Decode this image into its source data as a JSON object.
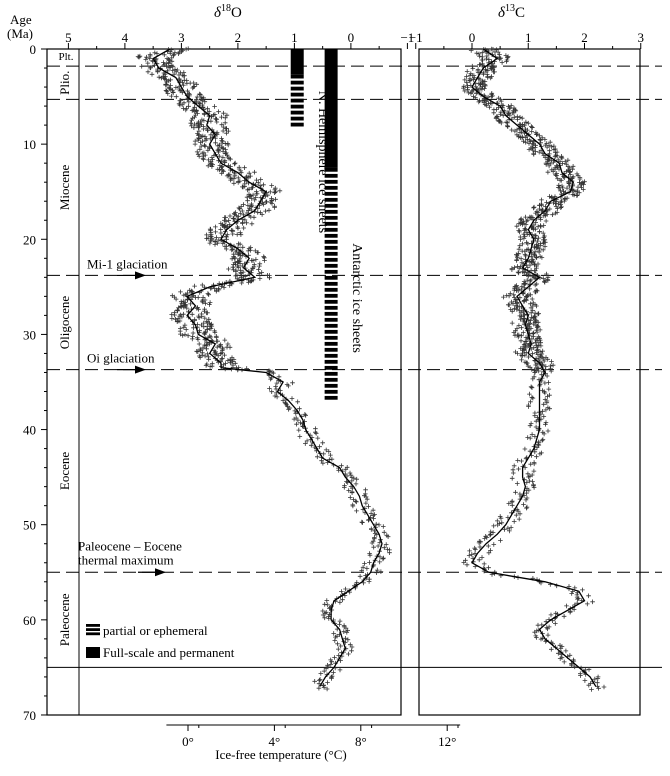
{
  "chart_data": {
    "type": "scatter",
    "y_axis": {
      "label_line1": "Age",
      "label_line2": "(Ma)",
      "ticks": [
        0,
        10,
        20,
        30,
        40,
        50,
        60,
        70
      ],
      "range": [
        0,
        70
      ]
    },
    "o18_axis": {
      "title_delta": "δ",
      "title_sup": "18",
      "title_elem": "O",
      "ticks": [
        5,
        4,
        3,
        2,
        1,
        0,
        -1
      ],
      "tick_labels": [
        "5",
        "4",
        "3",
        "2",
        "1",
        "0",
        "−1"
      ],
      "range": [
        5,
        -1
      ]
    },
    "c13_axis": {
      "title_delta": "δ",
      "title_sup": "13",
      "title_elem": "C",
      "ticks": [
        -1,
        0,
        1,
        2,
        3
      ],
      "tick_labels": [
        "−1",
        "0",
        "1",
        "2",
        "3"
      ],
      "range": [
        -1,
        3
      ]
    },
    "temp_axis": {
      "label": "Ice-free temperature (°C)",
      "ticks": [
        0,
        4,
        8,
        12
      ],
      "tick_labels": [
        "0°",
        "4°",
        "8°",
        "12°"
      ]
    },
    "epochs": [
      {
        "name": "Plt.",
        "start": 0,
        "end": 1.8
      },
      {
        "name": "Plio.",
        "start": 1.8,
        "end": 5.3
      },
      {
        "name": "Miocene",
        "start": 5.3,
        "end": 23.8
      },
      {
        "name": "Oligocene",
        "start": 23.8,
        "end": 33.7
      },
      {
        "name": "Eocene",
        "start": 33.7,
        "end": 55
      },
      {
        "name": "Paleocene",
        "start": 55,
        "end": 65
      }
    ],
    "event_lines": [
      1.8,
      5.3,
      23.8,
      33.7,
      55
    ],
    "boundary_solid": 65,
    "events": [
      {
        "label": "Mi-1 glaciation",
        "age": 23.8
      },
      {
        "label": "Oi glaciation",
        "age": 33.7
      },
      {
        "label_line1": "Paleocene – Eocene",
        "label_line2": "thermal maximum",
        "age": 55
      }
    ],
    "ice_sheets": [
      {
        "label": "N. Hemisphere ice sheets",
        "x_o18": 0.95,
        "partial": [
          2.7,
          8
        ],
        "full": [
          0,
          2.7
        ]
      },
      {
        "label": "Antarctic ice sheets",
        "x_o18": 0.35,
        "partial": [
          12.5,
          37
        ],
        "full": [
          0,
          12.5
        ]
      }
    ],
    "legend": {
      "partial": "partial or ephemeral",
      "full": "Full-scale and permanent"
    },
    "series": [
      {
        "variable": "d18O",
        "curve": [
          [
            0,
            3.2
          ],
          [
            1,
            3.5
          ],
          [
            2,
            3.4
          ],
          [
            3,
            3.1
          ],
          [
            4,
            3.0
          ],
          [
            5,
            2.9
          ],
          [
            6,
            2.7
          ],
          [
            7,
            2.5
          ],
          [
            8,
            2.55
          ],
          [
            9,
            2.4
          ],
          [
            10,
            2.5
          ],
          [
            11,
            2.4
          ],
          [
            12,
            2.3
          ],
          [
            13,
            2.0
          ],
          [
            14,
            1.8
          ],
          [
            15,
            1.5
          ],
          [
            16,
            1.6
          ],
          [
            17,
            1.7
          ],
          [
            18,
            2.0
          ],
          [
            19,
            2.2
          ],
          [
            20,
            2.3
          ],
          [
            21,
            2.0
          ],
          [
            22,
            1.8
          ],
          [
            23,
            1.9
          ],
          [
            24,
            1.7
          ],
          [
            25,
            2.5
          ],
          [
            26,
            2.9
          ],
          [
            27,
            2.75
          ],
          [
            28,
            2.9
          ],
          [
            29,
            2.75
          ],
          [
            30,
            2.7
          ],
          [
            31,
            2.4
          ],
          [
            32,
            2.5
          ],
          [
            33,
            2.3
          ],
          [
            33.5,
            2.3
          ],
          [
            34,
            1.5
          ],
          [
            35,
            1.2
          ],
          [
            36,
            1.3
          ],
          [
            37,
            1.1
          ],
          [
            38,
            0.95
          ],
          [
            39,
            0.85
          ],
          [
            40,
            0.8
          ],
          [
            41,
            0.7
          ],
          [
            42,
            0.6
          ],
          [
            43,
            0.5
          ],
          [
            44,
            0.2
          ],
          [
            45,
            0.1
          ],
          [
            46,
            -0.05
          ],
          [
            47,
            -0.15
          ],
          [
            48,
            -0.2
          ],
          [
            49,
            -0.3
          ],
          [
            50,
            -0.4
          ],
          [
            51,
            -0.5
          ],
          [
            52,
            -0.55
          ],
          [
            53,
            -0.5
          ],
          [
            54,
            -0.4
          ],
          [
            55,
            -0.35
          ],
          [
            56,
            -0.2
          ],
          [
            57,
            0.05
          ],
          [
            58,
            0.3
          ],
          [
            59,
            0.35
          ],
          [
            60,
            0.35
          ],
          [
            61,
            0.2
          ],
          [
            62,
            0.15
          ],
          [
            63,
            0.1
          ],
          [
            64,
            0.2
          ],
          [
            65,
            0.3
          ],
          [
            66,
            0.45
          ],
          [
            67,
            0.55
          ]
        ]
      },
      {
        "variable": "d13C",
        "curve": [
          [
            0,
            0.2
          ],
          [
            1,
            0.45
          ],
          [
            2,
            0.2
          ],
          [
            3,
            0.1
          ],
          [
            4,
            0.0
          ],
          [
            5,
            0.2
          ],
          [
            6,
            0.5
          ],
          [
            7,
            0.6
          ],
          [
            8,
            0.8
          ],
          [
            9,
            1.0
          ],
          [
            10,
            1.2
          ],
          [
            11,
            1.3
          ],
          [
            12,
            1.55
          ],
          [
            13,
            1.6
          ],
          [
            14,
            1.8
          ],
          [
            15,
            1.75
          ],
          [
            16,
            1.4
          ],
          [
            17,
            1.3
          ],
          [
            18,
            1.1
          ],
          [
            19,
            1.0
          ],
          [
            20,
            1.1
          ],
          [
            21,
            1.05
          ],
          [
            22,
            1.0
          ],
          [
            23,
            0.9
          ],
          [
            24,
            1.2
          ],
          [
            25,
            1.0
          ],
          [
            26,
            0.8
          ],
          [
            27,
            0.9
          ],
          [
            28,
            1.0
          ],
          [
            29,
            0.95
          ],
          [
            30,
            1.0
          ],
          [
            31,
            1.05
          ],
          [
            32,
            1.0
          ],
          [
            33,
            1.2
          ],
          [
            34,
            1.3
          ],
          [
            35,
            1.2
          ],
          [
            36,
            1.2
          ],
          [
            37,
            1.2
          ],
          [
            38,
            1.2
          ],
          [
            39,
            1.2
          ],
          [
            40,
            1.2
          ],
          [
            41,
            1.15
          ],
          [
            42,
            1.1
          ],
          [
            43,
            1.0
          ],
          [
            44,
            0.9
          ],
          [
            45,
            0.9
          ],
          [
            46,
            0.95
          ],
          [
            47,
            0.9
          ],
          [
            48,
            0.8
          ],
          [
            49,
            0.7
          ],
          [
            50,
            0.6
          ],
          [
            51,
            0.45
          ],
          [
            52,
            0.25
          ],
          [
            53,
            0.1
          ],
          [
            54,
            0.0
          ],
          [
            55,
            0.3
          ],
          [
            56,
            1.3
          ],
          [
            57,
            1.9
          ],
          [
            58,
            2.0
          ],
          [
            59,
            1.7
          ],
          [
            60,
            1.4
          ],
          [
            61,
            1.2
          ],
          [
            62,
            1.3
          ],
          [
            63,
            1.5
          ],
          [
            64,
            1.7
          ],
          [
            65,
            1.9
          ],
          [
            66,
            2.1
          ],
          [
            67,
            2.2
          ]
        ]
      }
    ]
  }
}
